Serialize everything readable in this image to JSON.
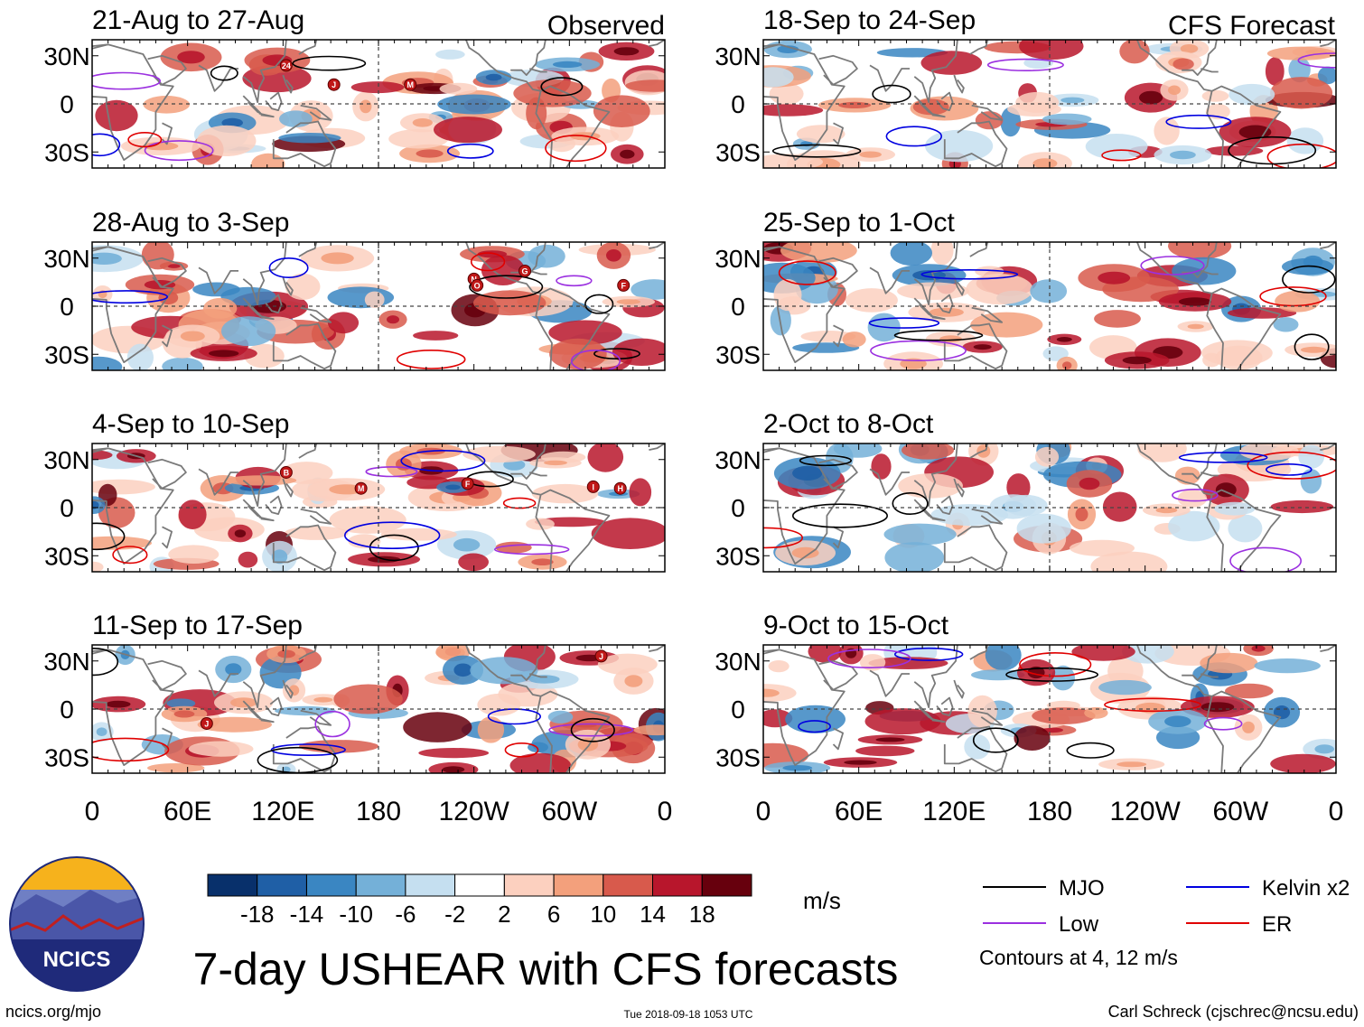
{
  "colors": {
    "mjo": "#000000",
    "low": "#9b30e0",
    "kelvin": "#0000e0",
    "er": "#e00000",
    "land": "#7a7a7a",
    "grid": "#333333"
  },
  "chart_data": {
    "type": "heatmap",
    "title": "7-day USHEAR with CFS forecasts",
    "variable": "USHEAR",
    "units": "m/s",
    "observed_label": "Observed",
    "forecast_label": "CFS Forecast",
    "panels": [
      {
        "label": "21-Aug to 27-Aug",
        "source": "observed",
        "storms": [
          {
            "letter": "24",
            "lon": 122,
            "lat": 24
          },
          {
            "letter": "J",
            "lon": 152,
            "lat": 12
          },
          {
            "letter": "M",
            "lon": 200,
            "lat": 12
          }
        ]
      },
      {
        "label": "28-Aug to 3-Sep",
        "source": "observed",
        "storms": [
          {
            "letter": "N",
            "lon": 240,
            "lat": 17
          },
          {
            "letter": "O",
            "lon": 242,
            "lat": 13
          },
          {
            "letter": "G",
            "lon": 272,
            "lat": 22
          },
          {
            "letter": "F",
            "lon": 334,
            "lat": 13
          }
        ]
      },
      {
        "label": "4-Sep to 10-Sep",
        "source": "observed",
        "storms": [
          {
            "letter": "B",
            "lon": 122,
            "lat": 22
          },
          {
            "letter": "M",
            "lon": 169,
            "lat": 12
          },
          {
            "letter": "F",
            "lon": 236,
            "lat": 15
          },
          {
            "letter": "I",
            "lon": 315,
            "lat": 13
          },
          {
            "letter": "H",
            "lon": 332,
            "lat": 12
          }
        ]
      },
      {
        "label": "11-Sep to 17-Sep",
        "source": "observed",
        "storms": [
          {
            "letter": "J",
            "lon": 72,
            "lat": -9
          },
          {
            "letter": "J",
            "lon": 320,
            "lat": 33
          }
        ]
      },
      {
        "label": "18-Sep to 24-Sep",
        "source": "forecast",
        "storms": []
      },
      {
        "label": "25-Sep to 1-Oct",
        "source": "forecast",
        "storms": []
      },
      {
        "label": "2-Oct to 8-Oct",
        "source": "forecast",
        "storms": []
      },
      {
        "label": "9-Oct to 15-Oct",
        "source": "forecast",
        "storms": []
      }
    ],
    "x_axis": {
      "ticks": [
        "0",
        "60E",
        "120E",
        "180",
        "120W",
        "60W",
        "0"
      ],
      "range_deg_east": [
        0,
        360
      ]
    },
    "y_axis": {
      "ticks": [
        "30N",
        "0",
        "30S"
      ],
      "range_deg": [
        -40,
        40
      ]
    },
    "colorbar": {
      "tick_labels": [
        "-18",
        "-14",
        "-10",
        "-6",
        "-2",
        "2",
        "6",
        "10",
        "14",
        "18"
      ],
      "bins": [
        {
          "min": null,
          "max": -18,
          "color": "#08306b"
        },
        {
          "min": -18,
          "max": -14,
          "color": "#1f5fa6"
        },
        {
          "min": -14,
          "max": -10,
          "color": "#3a86c2"
        },
        {
          "min": -10,
          "max": -6,
          "color": "#74b0d8"
        },
        {
          "min": -6,
          "max": -2,
          "color": "#c5dff0"
        },
        {
          "min": -2,
          "max": 2,
          "color": "#ffffff"
        },
        {
          "min": 2,
          "max": 6,
          "color": "#fcd0bf"
        },
        {
          "min": 6,
          "max": 10,
          "color": "#f3a07c"
        },
        {
          "min": 10,
          "max": 14,
          "color": "#d85a4c"
        },
        {
          "min": 14,
          "max": 18,
          "color": "#b8162c"
        },
        {
          "min": 18,
          "max": null,
          "color": "#67000d"
        }
      ]
    },
    "legend": [
      {
        "label": "MJO",
        "color_key": "mjo"
      },
      {
        "label": "Kelvin x2",
        "color_key": "kelvin"
      },
      {
        "label": "Low",
        "color_key": "low"
      },
      {
        "label": "ER",
        "color_key": "er"
      }
    ],
    "contour_note": "Contours at 4, 12 m/s"
  },
  "footer": {
    "logo_text": "NCICS",
    "url": "ncics.org/mjo",
    "timestamp": "Tue 2018-09-18 1053 UTC",
    "credit": "Carl Schreck (cjschrec@ncsu.edu)"
  }
}
